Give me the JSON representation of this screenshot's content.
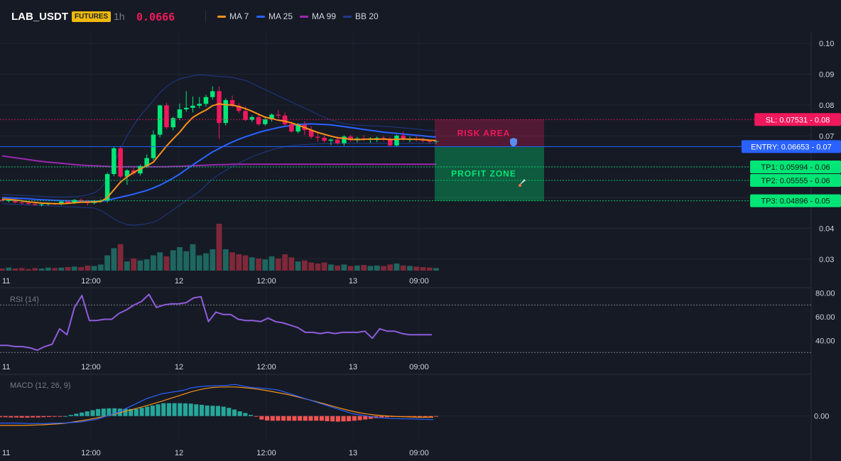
{
  "header": {
    "symbol": "LAB_USDT",
    "badge": "FUTURES",
    "timeframe": "1h",
    "price": "0.0666",
    "legend": [
      {
        "label": "MA 7",
        "color": "#f7931a"
      },
      {
        "label": "MA 25",
        "color": "#2962ff"
      },
      {
        "label": "MA 99",
        "color": "#9c27b0"
      },
      {
        "label": "BB 20",
        "color": "#1e3a8a"
      }
    ]
  },
  "chart_data": [
    {
      "type": "candlestick",
      "title": "LAB_USDT",
      "ylim": [
        0.0265,
        0.1035
      ],
      "y_ticks": [
        "0.10",
        "0.09",
        "0.08",
        "0.07",
        "0.06",
        "0.05",
        "0.04",
        "0.03"
      ],
      "x_ticks": [
        "11",
        "12:00",
        "12",
        "12:00",
        "13",
        "09:00"
      ],
      "candles": [
        [
          0.0492,
          0.0495,
          0.0486,
          0.0489
        ],
        [
          0.0489,
          0.0494,
          0.0484,
          0.0491
        ],
        [
          0.0491,
          0.0493,
          0.0481,
          0.0484
        ],
        [
          0.0484,
          0.0488,
          0.0478,
          0.0482
        ],
        [
          0.0482,
          0.0486,
          0.0477,
          0.0479
        ],
        [
          0.0479,
          0.0483,
          0.0474,
          0.0476
        ],
        [
          0.0476,
          0.0481,
          0.0471,
          0.0478
        ],
        [
          0.0478,
          0.0484,
          0.0474,
          0.0481
        ],
        [
          0.0481,
          0.0484,
          0.0476,
          0.0478
        ],
        [
          0.0478,
          0.0489,
          0.0475,
          0.0487
        ],
        [
          0.0487,
          0.0491,
          0.048,
          0.0483
        ],
        [
          0.0483,
          0.0495,
          0.0479,
          0.0492
        ],
        [
          0.0492,
          0.0497,
          0.0485,
          0.0488
        ],
        [
          0.0488,
          0.0493,
          0.0474,
          0.0482
        ],
        [
          0.0482,
          0.0492,
          0.0478,
          0.0489
        ],
        [
          0.0489,
          0.0495,
          0.0484,
          0.0491
        ],
        [
          0.0491,
          0.0581,
          0.0483,
          0.0576
        ],
        [
          0.0576,
          0.0665,
          0.0569,
          0.066
        ],
        [
          0.066,
          0.0664,
          0.0562,
          0.0568
        ],
        [
          0.0568,
          0.0592,
          0.0541,
          0.0588
        ],
        [
          0.0588,
          0.0596,
          0.0572,
          0.0578
        ],
        [
          0.0578,
          0.0607,
          0.0571,
          0.0602
        ],
        [
          0.0602,
          0.064,
          0.0596,
          0.0628
        ],
        [
          0.0628,
          0.0718,
          0.0621,
          0.0704
        ],
        [
          0.0704,
          0.0801,
          0.0695,
          0.0799
        ],
        [
          0.0799,
          0.0807,
          0.0722,
          0.0728
        ],
        [
          0.0728,
          0.0762,
          0.0718,
          0.0758
        ],
        [
          0.0758,
          0.0805,
          0.0751,
          0.0786
        ],
        [
          0.0786,
          0.0845,
          0.0778,
          0.0791
        ],
        [
          0.0791,
          0.0828,
          0.0776,
          0.0798
        ],
        [
          0.0798,
          0.0826,
          0.079,
          0.0804
        ],
        [
          0.0804,
          0.0833,
          0.0795,
          0.0826
        ],
        [
          0.0826,
          0.0861,
          0.0818,
          0.0845
        ],
        [
          0.0845,
          0.086,
          0.069,
          0.0742
        ],
        [
          0.0742,
          0.0822,
          0.0734,
          0.0816
        ],
        [
          0.0816,
          0.0831,
          0.0793,
          0.0797
        ],
        [
          0.0797,
          0.0806,
          0.0774,
          0.0781
        ],
        [
          0.0781,
          0.0796,
          0.0748,
          0.0752
        ],
        [
          0.0752,
          0.0766,
          0.0745,
          0.0761
        ],
        [
          0.0761,
          0.0773,
          0.0733,
          0.0738
        ],
        [
          0.0738,
          0.076,
          0.0733,
          0.0754
        ],
        [
          0.0754,
          0.0773,
          0.0746,
          0.0769
        ],
        [
          0.0769,
          0.0784,
          0.0757,
          0.0766
        ],
        [
          0.0766,
          0.0776,
          0.0733,
          0.0738
        ],
        [
          0.0738,
          0.0746,
          0.0711,
          0.0714
        ],
        [
          0.0714,
          0.0742,
          0.0708,
          0.0736
        ],
        [
          0.0736,
          0.0747,
          0.0703,
          0.0719
        ],
        [
          0.0719,
          0.0731,
          0.0691,
          0.0697
        ],
        [
          0.0697,
          0.0709,
          0.0681,
          0.0694
        ],
        [
          0.0694,
          0.0702,
          0.0678,
          0.0684
        ],
        [
          0.0684,
          0.0691,
          0.067,
          0.0688
        ],
        [
          0.0688,
          0.0699,
          0.0672,
          0.0676
        ],
        [
          0.0676,
          0.0702,
          0.0668,
          0.0698
        ],
        [
          0.0698,
          0.0704,
          0.0681,
          0.0686
        ],
        [
          0.0686,
          0.0697,
          0.0679,
          0.0692
        ],
        [
          0.0692,
          0.0702,
          0.0684,
          0.0688
        ],
        [
          0.0688,
          0.0696,
          0.0677,
          0.0689
        ],
        [
          0.0689,
          0.0698,
          0.068,
          0.0693
        ],
        [
          0.0693,
          0.0701,
          0.0683,
          0.0691
        ],
        [
          0.0691,
          0.0697,
          0.0665,
          0.0669
        ],
        [
          0.0669,
          0.0704,
          0.0666,
          0.0701
        ],
        [
          0.0701,
          0.0714,
          0.0684,
          0.0689
        ],
        [
          0.0689,
          0.0698,
          0.0679,
          0.0691
        ],
        [
          0.0691,
          0.0702,
          0.0682,
          0.0688
        ],
        [
          0.0688,
          0.0694,
          0.0679,
          0.0684
        ],
        [
          0.0684,
          0.0689,
          0.0675,
          0.0681
        ],
        [
          0.0681,
          0.0686,
          0.0674,
          0.0683
        ]
      ],
      "volumes": [
        4,
        6,
        4,
        5,
        3,
        5,
        4,
        6,
        5,
        6,
        7,
        8,
        7,
        10,
        9,
        12,
        30,
        44,
        52,
        18,
        24,
        20,
        22,
        30,
        36,
        28,
        40,
        46,
        38,
        52,
        30,
        34,
        42,
        92,
        42,
        36,
        32,
        30,
        26,
        24,
        22,
        28,
        24,
        32,
        26,
        18,
        20,
        16,
        14,
        16,
        12,
        10,
        12,
        9,
        10,
        11,
        9,
        10,
        9,
        12,
        14,
        10,
        9,
        8,
        7,
        6,
        5
      ],
      "ma7": [
        0.0495,
        0.0494,
        0.0492,
        0.0489,
        0.0486,
        0.0484,
        0.0482,
        0.0481,
        0.048,
        0.048,
        0.0481,
        0.0483,
        0.0485,
        0.0485,
        0.0486,
        0.0487,
        0.05,
        0.0525,
        0.055,
        0.0567,
        0.0581,
        0.0593,
        0.0603,
        0.0615,
        0.0641,
        0.0667,
        0.069,
        0.0712,
        0.0738,
        0.076,
        0.0773,
        0.0784,
        0.0798,
        0.0804,
        0.0801,
        0.08,
        0.0795,
        0.0788,
        0.078,
        0.077,
        0.0761,
        0.0756,
        0.0751,
        0.0748,
        0.0742,
        0.0735,
        0.0727,
        0.0719,
        0.0711,
        0.0705,
        0.0699,
        0.0694,
        0.0692,
        0.0689,
        0.0688,
        0.0689,
        0.069,
        0.0689,
        0.069,
        0.0688,
        0.0689,
        0.069,
        0.0689,
        0.0689,
        0.0688,
        0.0686,
        0.0685
      ],
      "ma25": [
        0.05,
        0.0499,
        0.0498,
        0.0497,
        0.0496,
        0.0494,
        0.0493,
        0.0492,
        0.0491,
        0.049,
        0.0489,
        0.0489,
        0.0488,
        0.0488,
        0.0488,
        0.0488,
        0.0491,
        0.0496,
        0.0501,
        0.0506,
        0.0511,
        0.0517,
        0.0523,
        0.0531,
        0.054,
        0.0551,
        0.0563,
        0.0576,
        0.0591,
        0.0606,
        0.062,
        0.0634,
        0.0648,
        0.0659,
        0.067,
        0.068,
        0.0689,
        0.0697,
        0.0704,
        0.0711,
        0.0717,
        0.0722,
        0.0727,
        0.0731,
        0.0734,
        0.0737,
        0.0738,
        0.0739,
        0.0738,
        0.0737,
        0.0736,
        0.0733,
        0.073,
        0.0727,
        0.0724,
        0.0721,
        0.0718,
        0.0715,
        0.0712,
        0.071,
        0.0708,
        0.0706,
        0.0704,
        0.0702,
        0.07,
        0.0698,
        0.0696
      ],
      "ma99": [
        0.0635,
        0.0632,
        0.0629,
        0.0626,
        0.0623,
        0.062,
        0.0617,
        0.0615,
        0.0613,
        0.0611,
        0.0609,
        0.0607,
        0.0605,
        0.0604,
        0.0603,
        0.0602,
        0.0601,
        0.06,
        0.06,
        0.06,
        0.06,
        0.06,
        0.06,
        0.06,
        0.06,
        0.06,
        0.0601,
        0.0601,
        0.0602,
        0.0603,
        0.0604,
        0.0605,
        0.0606,
        0.0607,
        0.0607,
        0.0608,
        0.0608,
        0.0608,
        0.0608,
        0.0608,
        0.0608,
        0.0608,
        0.0608,
        0.0608,
        0.0608,
        0.0608,
        0.0608,
        0.0608,
        0.0608,
        0.0608,
        0.0608,
        0.0608,
        0.0608,
        0.0608,
        0.0608,
        0.0608,
        0.0608,
        0.0608,
        0.0608,
        0.0608,
        0.0608,
        0.0608,
        0.0608,
        0.0608,
        0.0608,
        0.0608,
        0.0608
      ],
      "bb_upper": [
        0.051,
        0.0509,
        0.0508,
        0.0507,
        0.0506,
        0.0505,
        0.0504,
        0.0503,
        0.0502,
        0.0502,
        0.0502,
        0.0503,
        0.0505,
        0.0509,
        0.0515,
        0.053,
        0.056,
        0.061,
        0.066,
        0.07,
        0.0735,
        0.0765,
        0.079,
        0.0815,
        0.084,
        0.086,
        0.0875,
        0.0885,
        0.089,
        0.0895,
        0.0898,
        0.0897,
        0.0895,
        0.0893,
        0.0892,
        0.089,
        0.0885,
        0.088,
        0.087,
        0.086,
        0.085,
        0.084,
        0.083,
        0.082,
        0.081,
        0.08,
        0.079,
        0.078,
        0.077,
        0.076,
        0.0752,
        0.0745,
        0.074,
        0.0737,
        0.0735,
        0.0734,
        0.0733,
        0.0732,
        0.0731,
        0.073,
        0.0728,
        0.0726,
        0.0724,
        0.0722,
        0.072,
        0.0718,
        0.0716
      ],
      "bb_lower": [
        0.048,
        0.0479,
        0.0478,
        0.0477,
        0.0476,
        0.0475,
        0.0474,
        0.0473,
        0.0472,
        0.0471,
        0.047,
        0.0469,
        0.0468,
        0.0467,
        0.0466,
        0.0458,
        0.0445,
        0.043,
        0.042,
        0.0412,
        0.041,
        0.0412,
        0.0415,
        0.042,
        0.043,
        0.0445,
        0.046,
        0.0475,
        0.049,
        0.0505,
        0.052,
        0.054,
        0.056,
        0.0575,
        0.0588,
        0.06,
        0.0612,
        0.0622,
        0.0632,
        0.064,
        0.0648,
        0.0655,
        0.066,
        0.0665,
        0.0668,
        0.067,
        0.0672,
        0.0673,
        0.0674,
        0.0675,
        0.0676,
        0.0676,
        0.0676,
        0.0676,
        0.0676,
        0.0676,
        0.0676,
        0.0676,
        0.0676,
        0.0676,
        0.0676,
        0.0676,
        0.0676,
        0.0676,
        0.0676,
        0.0676,
        0.0676
      ],
      "levels": [
        {
          "name": "SL",
          "label": "SL: 0.07531",
          "value": 0.07531,
          "axis_label": "0.08",
          "color": "#f0185c",
          "style": "dotted"
        },
        {
          "name": "ENTRY",
          "label": "ENTRY: 0.06653",
          "value": 0.06653,
          "axis_label": "0.07",
          "color": "#2962ff",
          "style": "solid"
        },
        {
          "name": "TP1",
          "label": "TP1: 0.05994",
          "value": 0.05994,
          "axis_label": "0.06",
          "color": "#00e676",
          "style": "dotted"
        },
        {
          "name": "TP2",
          "label": "TP2: 0.05555",
          "value": 0.05555,
          "axis_label": "0.06",
          "color": "#00e676",
          "style": "dotted"
        },
        {
          "name": "TP3",
          "label": "TP3: 0.04896",
          "value": 0.04896,
          "axis_label": "0.05",
          "color": "#00e676",
          "style": "dotted"
        }
      ],
      "zones": [
        {
          "label": "RISK AREA",
          "icon": "shield-icon",
          "from": 0.06653,
          "to": 0.07531,
          "color": "#f0185c"
        },
        {
          "label": "PROFIT ZONE",
          "icon": "rocket-icon",
          "from": 0.04896,
          "to": 0.06653,
          "color": "#00e676"
        }
      ]
    },
    {
      "type": "line",
      "title": "RSI (14)",
      "ylim": [
        26,
        84
      ],
      "y_ticks": [
        "80.00",
        "60.00",
        "40.00"
      ],
      "overbought": 70,
      "oversold": 30,
      "x_ticks": [
        "11",
        "12:00",
        "12",
        "12:00",
        "13",
        "09:00"
      ],
      "values": [
        36,
        36,
        35,
        35,
        34,
        32,
        35,
        37,
        50,
        45,
        68,
        78,
        57,
        57,
        58,
        58,
        63,
        66,
        70,
        73,
        79,
        68,
        70,
        71,
        71,
        72,
        76,
        77,
        56,
        64,
        62,
        62,
        58,
        57,
        57,
        56,
        59,
        56,
        55,
        53,
        51,
        47,
        47,
        46,
        47,
        46,
        47,
        47,
        47,
        48,
        42,
        50,
        48,
        48,
        46,
        45,
        45,
        45,
        45
      ]
    },
    {
      "type": "histogram",
      "title": "MACD (12, 26, 9)",
      "ylim": [
        -0.0022,
        0.0035
      ],
      "y_ticks": [
        "0.00"
      ],
      "x_ticks": [
        "11",
        "12:00",
        "12",
        "12:00",
        "13",
        "09:00"
      ],
      "histogram": [
        -0.0001,
        -0.0001,
        -0.00012,
        -0.00012,
        -0.00014,
        -0.00014,
        -0.00012,
        -0.00012,
        -0.0001,
        -8e-05,
        -6e-05,
        -4e-05,
        0.0,
        0.0001,
        0.0002,
        0.0003,
        0.0004,
        0.0005,
        0.0006,
        0.00064,
        0.00066,
        0.00066,
        0.00064,
        0.00062,
        0.0006,
        0.0006,
        0.0007,
        0.0008,
        0.0009,
        0.001,
        0.0011,
        0.0011,
        0.0011,
        0.0011,
        0.00108,
        0.00106,
        0.001,
        0.00096,
        0.0009,
        0.00088,
        0.00086,
        0.0008,
        0.0007,
        0.00056,
        0.0004,
        0.00026,
        0.0001,
        -2e-05,
        -0.0003,
        -0.00038,
        -0.0004,
        -0.0004,
        -0.0004,
        -0.0004,
        -0.0004,
        -0.0004,
        -0.0004,
        -0.0004,
        -0.0004,
        -0.0004,
        -0.00044,
        -0.00046,
        -0.00048,
        -0.00046,
        -0.00044,
        -0.0004,
        -0.00036,
        -0.0003,
        -0.00024,
        -0.00018,
        -0.00012,
        -0.0001,
        -8e-05,
        -6e-05,
        -6e-05,
        -8e-05,
        -8e-05,
        -0.0001,
        -0.0001,
        -8e-05,
        -6e-05
      ],
      "macd": [
        -0.0006,
        -0.0006,
        -0.0006,
        -0.00062,
        -0.00064,
        -0.00064,
        -0.00064,
        -0.00062,
        -0.0006,
        -0.00058,
        -0.00054,
        -0.0005,
        -0.0004,
        -0.0003,
        -0.0001,
        0.0001,
        0.0003,
        0.0006,
        0.0009,
        0.0012,
        0.0015,
        0.0017,
        0.0019,
        0.002,
        0.0021,
        0.0022,
        0.0024,
        0.0025,
        0.00256,
        0.00258,
        0.0026,
        0.00262,
        0.0027,
        0.00258,
        0.00246,
        0.0024,
        0.00236,
        0.0023,
        0.0022,
        0.002,
        0.0018,
        0.0016,
        0.0014,
        0.0012,
        0.001,
        0.0008,
        0.0006,
        0.0004,
        0.0002,
        0.0001,
        0.0,
        -0.0001,
        -0.00015,
        -0.0002,
        -0.00022,
        -0.00024,
        -0.00024,
        -0.00026,
        -0.00028,
        -0.0003
      ],
      "signal": [
        -0.0008,
        -0.0008,
        -0.0008,
        -0.0008,
        -0.00078,
        -0.00076,
        -0.00074,
        -0.0007,
        -0.00066,
        -0.0006,
        -0.0005,
        -0.0004,
        -0.0003,
        -0.00018,
        -6e-05,
        8e-05,
        0.00024,
        0.0004,
        0.00056,
        0.00072,
        0.0009,
        0.00108,
        0.00126,
        0.00146,
        0.00166,
        0.00186,
        0.00206,
        0.00222,
        0.00236,
        0.00244,
        0.00248,
        0.00248,
        0.00248,
        0.00244,
        0.00238,
        0.0023,
        0.0022,
        0.0021,
        0.00198,
        0.00186,
        0.00172,
        0.00156,
        0.0014,
        0.00124,
        0.00108,
        0.0009,
        0.00072,
        0.00056,
        0.0004,
        0.00028,
        0.00018,
        0.0001,
        4e-05,
        0.0,
        -4e-05,
        -6e-05,
        -8e-05,
        -0.0001,
        -0.0001,
        -0.0001
      ]
    }
  ]
}
